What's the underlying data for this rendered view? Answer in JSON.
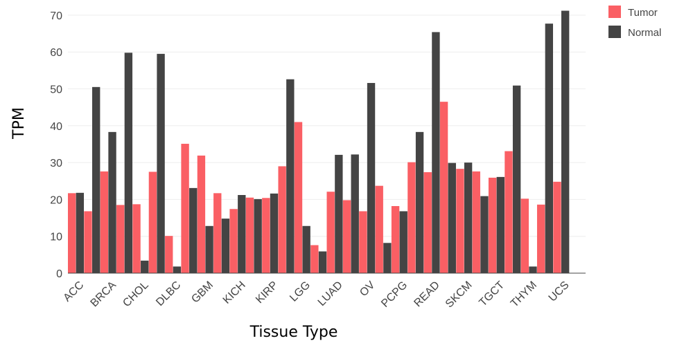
{
  "chart_data": {
    "type": "bar",
    "categories": [
      "ACC",
      "BRCA",
      "CHOL",
      "DLBC",
      "GBM",
      "KICH",
      "KIRP",
      "LGG",
      "LUAD",
      "OV",
      "PCPG",
      "READ",
      "SKCM",
      "TGCT",
      "THYM",
      "UCS"
    ],
    "series": [
      {
        "name": "Tumor",
        "color": "#fa5f64",
        "values": [
          [
            21.7,
            16.8
          ],
          [
            27.6,
            18.5
          ],
          [
            18.7,
            27.5
          ],
          [
            10.1,
            35.1
          ],
          [
            31.9,
            21.7
          ],
          [
            17.4,
            20.5
          ],
          [
            20.4,
            29.0
          ],
          [
            41.0,
            7.6
          ],
          [
            22.1,
            19.8
          ],
          [
            16.8,
            23.7
          ],
          [
            18.2,
            30.1
          ],
          [
            27.4,
            46.5
          ],
          [
            28.3,
            27.6
          ],
          [
            25.9,
            33.1
          ],
          [
            20.2,
            18.6
          ],
          [
            24.8,
            null
          ]
        ]
      },
      {
        "name": "Normal",
        "color": "#444444",
        "values": [
          [
            21.8,
            50.5
          ],
          [
            38.3,
            59.8
          ],
          [
            3.4,
            59.5
          ],
          [
            1.8,
            23.1
          ],
          [
            12.8,
            14.8
          ],
          [
            21.2,
            20.1
          ],
          [
            21.6,
            52.6
          ],
          [
            12.8,
            5.9
          ],
          [
            32.1,
            32.2
          ],
          [
            51.6,
            8.2
          ],
          [
            16.8,
            38.3
          ],
          [
            65.4,
            29.9
          ],
          [
            30.0,
            20.9
          ],
          [
            26.1,
            50.9
          ],
          [
            1.8,
            67.7
          ],
          [
            71.2,
            null
          ]
        ]
      }
    ],
    "ylabel": "TPM",
    "xlabel": "Tissue Type",
    "ylim": [
      0,
      71.5
    ],
    "yticks": [
      0,
      10,
      20,
      30,
      40,
      50,
      60,
      70
    ],
    "grid": true,
    "legend_position": "top-right"
  }
}
